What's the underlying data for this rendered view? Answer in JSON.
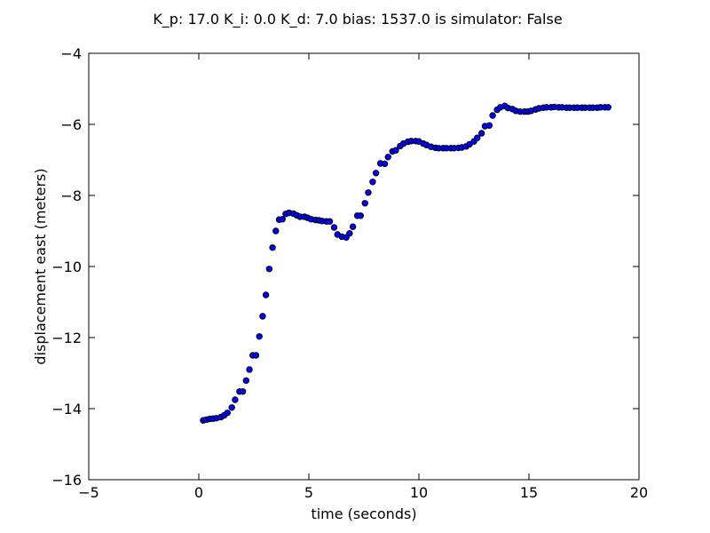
{
  "chart_data": {
    "type": "scatter",
    "title": "K_p: 17.0 K_i: 0.0 K_d: 7.0 bias: 1537.0 is simulator: False",
    "xlabel": "time (seconds)",
    "ylabel": "displacement east (meters)",
    "xlim": [
      -5,
      20
    ],
    "ylim": [
      -16,
      -4
    ],
    "xticks": [
      -5,
      0,
      5,
      10,
      15,
      20
    ],
    "yticks": [
      -16,
      -14,
      -12,
      -10,
      -8,
      -6,
      -4
    ],
    "xtick_labels": [
      "−5",
      "0",
      "5",
      "10",
      "15",
      "20"
    ],
    "ytick_labels": [
      "−16",
      "−14",
      "−12",
      "−10",
      "−8",
      "−6",
      "−4"
    ],
    "grid": false,
    "marker_color": "#0000ff",
    "marker_edge_color": "#000000",
    "series": [
      {
        "x": [
          0.2,
          0.35,
          0.5,
          0.65,
          0.8,
          1.0,
          1.15,
          1.3,
          1.5,
          1.65,
          1.85,
          2.0,
          2.15,
          2.3,
          2.45,
          2.6,
          2.75,
          2.9,
          3.05,
          3.2,
          3.35,
          3.5,
          3.65,
          3.8,
          3.95,
          4.1,
          4.3,
          4.45,
          4.6,
          4.8,
          4.95,
          5.1,
          5.3,
          5.45,
          5.6,
          5.8,
          5.95,
          6.15,
          6.3,
          6.5,
          6.7,
          6.85,
          7.0,
          7.2,
          7.35,
          7.55,
          7.7,
          7.9,
          8.05,
          8.25,
          8.45,
          8.6,
          8.8,
          8.95,
          9.15,
          9.3,
          9.5,
          9.65,
          9.85,
          10.0,
          10.2,
          10.35,
          10.55,
          10.75,
          10.9,
          11.1,
          11.25,
          11.45,
          11.6,
          11.8,
          11.95,
          12.15,
          12.3,
          12.5,
          12.65,
          12.85,
          13.0,
          13.2,
          13.35,
          13.55,
          13.7,
          13.9,
          14.05,
          14.25,
          14.4,
          14.6,
          14.8,
          14.95,
          15.1,
          15.3,
          15.45,
          15.65,
          15.8,
          16.0,
          16.15,
          16.35,
          16.5,
          16.7,
          16.85,
          17.05,
          17.2,
          17.4,
          17.55,
          17.75,
          17.9,
          18.1,
          18.25,
          18.45,
          18.6
        ],
        "y": [
          -14.33,
          -14.31,
          -14.29,
          -14.28,
          -14.27,
          -14.24,
          -14.19,
          -14.12,
          -13.97,
          -13.75,
          -13.52,
          -13.52,
          -13.21,
          -12.9,
          -12.5,
          -12.5,
          -11.97,
          -11.4,
          -10.8,
          -10.07,
          -9.47,
          -9.0,
          -8.68,
          -8.67,
          -8.52,
          -8.49,
          -8.51,
          -8.56,
          -8.6,
          -8.6,
          -8.63,
          -8.67,
          -8.69,
          -8.7,
          -8.72,
          -8.73,
          -8.73,
          -8.9,
          -9.1,
          -9.16,
          -9.18,
          -9.07,
          -8.88,
          -8.57,
          -8.57,
          -8.22,
          -7.92,
          -7.62,
          -7.37,
          -7.1,
          -7.11,
          -6.92,
          -6.76,
          -6.73,
          -6.61,
          -6.54,
          -6.49,
          -6.47,
          -6.47,
          -6.48,
          -6.54,
          -6.58,
          -6.63,
          -6.66,
          -6.67,
          -6.67,
          -6.67,
          -6.67,
          -6.67,
          -6.66,
          -6.65,
          -6.62,
          -6.56,
          -6.48,
          -6.38,
          -6.25,
          -6.05,
          -6.03,
          -5.75,
          -5.59,
          -5.52,
          -5.48,
          -5.54,
          -5.57,
          -5.62,
          -5.64,
          -5.64,
          -5.64,
          -5.62,
          -5.58,
          -5.55,
          -5.53,
          -5.52,
          -5.52,
          -5.51,
          -5.52,
          -5.52,
          -5.53,
          -5.53,
          -5.53,
          -5.53,
          -5.53,
          -5.53,
          -5.53,
          -5.53,
          -5.53,
          -5.52,
          -5.52,
          -5.52
        ]
      }
    ]
  }
}
